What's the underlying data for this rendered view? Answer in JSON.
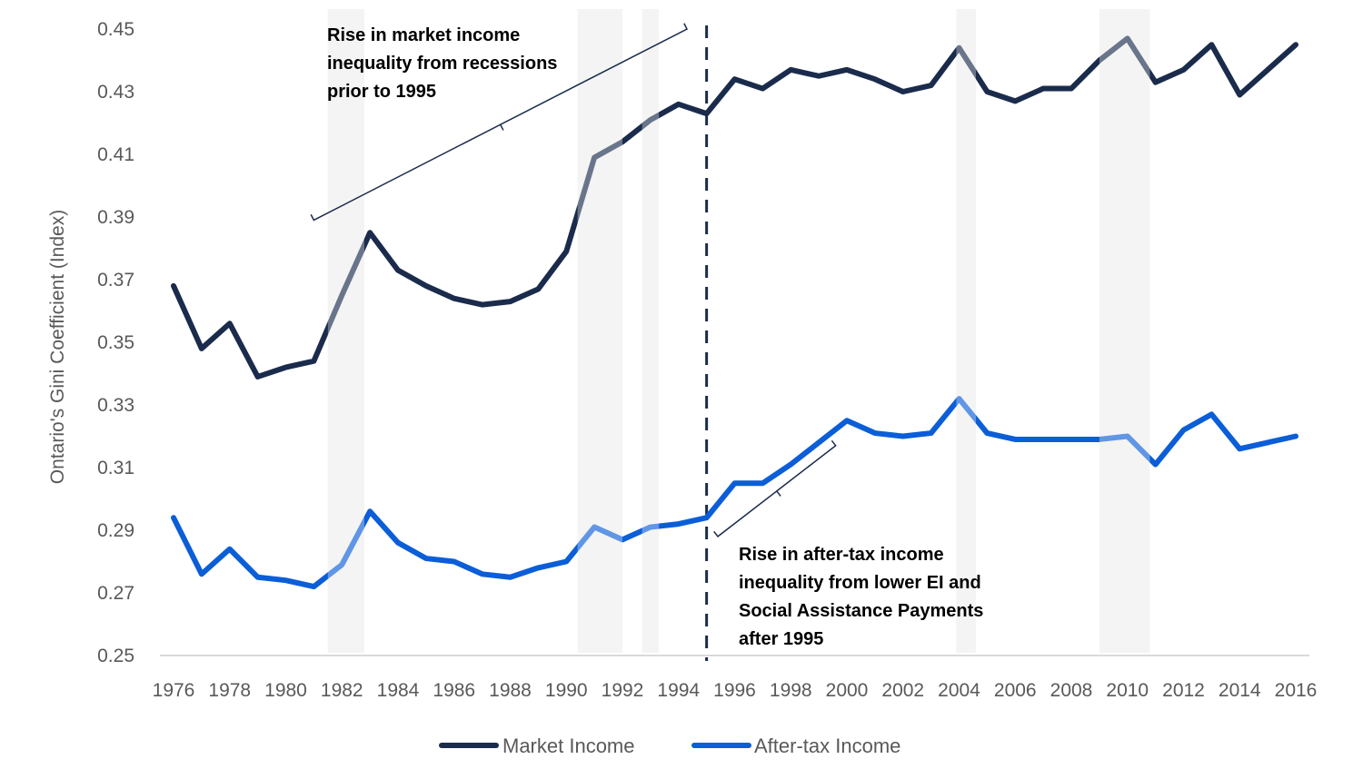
{
  "chart_data": {
    "type": "line",
    "title": "",
    "xlabel": "",
    "ylabel": "Ontario's Gini Coefficient (Index)",
    "ylim": [
      0.25,
      0.45
    ],
    "yticks": [
      "0.25",
      "0.27",
      "0.29",
      "0.31",
      "0.33",
      "0.35",
      "0.37",
      "0.39",
      "0.41",
      "0.43",
      "0.45"
    ],
    "ytick_values": [
      0.25,
      0.27,
      0.29,
      0.31,
      0.33,
      0.35,
      0.37,
      0.39,
      0.41,
      0.43,
      0.45
    ],
    "xlim": [
      1976,
      2016
    ],
    "xticks": [
      "1976",
      "1978",
      "1980",
      "1982",
      "1984",
      "1986",
      "1988",
      "1990",
      "1992",
      "1994",
      "1996",
      "1998",
      "2000",
      "2002",
      "2004",
      "2006",
      "2008",
      "2010",
      "2012",
      "2014",
      "2016"
    ],
    "xtick_values": [
      1976,
      1978,
      1980,
      1982,
      1984,
      1986,
      1988,
      1990,
      1992,
      1994,
      1996,
      1998,
      2000,
      2002,
      2004,
      2006,
      2008,
      2010,
      2012,
      2014,
      2016
    ],
    "grid": false,
    "legend_position": "bottom-center",
    "x": [
      1976,
      1977,
      1978,
      1979,
      1980,
      1981,
      1982,
      1983,
      1984,
      1985,
      1986,
      1987,
      1988,
      1989,
      1990,
      1991,
      1992,
      1993,
      1994,
      1995,
      1996,
      1997,
      1998,
      1999,
      2000,
      2001,
      2002,
      2003,
      2004,
      2005,
      2006,
      2007,
      2008,
      2009,
      2010,
      2011,
      2012,
      2013,
      2014,
      2015,
      2016
    ],
    "series": [
      {
        "name": "Market Income",
        "color": "#1a2b4c",
        "values": [
          0.368,
          0.348,
          0.356,
          0.339,
          0.342,
          0.344,
          0.365,
          0.385,
          0.373,
          0.368,
          0.364,
          0.362,
          0.363,
          0.367,
          0.379,
          0.409,
          0.414,
          0.421,
          0.426,
          0.423,
          0.434,
          0.431,
          0.437,
          0.435,
          0.437,
          0.434,
          0.43,
          0.432,
          0.444,
          0.43,
          0.427,
          0.431,
          0.431,
          0.44,
          0.447,
          0.433,
          0.437,
          0.445,
          0.429,
          0.437,
          0.445
        ]
      },
      {
        "name": "After-tax Income",
        "color": "#0b5ed7",
        "values": [
          0.294,
          0.276,
          0.284,
          0.275,
          0.274,
          0.272,
          0.279,
          0.296,
          0.286,
          0.281,
          0.28,
          0.276,
          0.275,
          0.278,
          0.28,
          0.291,
          0.287,
          0.291,
          0.292,
          0.294,
          0.305,
          0.305,
          0.311,
          0.318,
          0.325,
          0.321,
          0.32,
          0.321,
          0.332,
          0.321,
          0.319,
          0.319,
          0.319,
          0.319,
          0.32,
          0.311,
          0.322,
          0.327,
          0.316,
          0.318,
          0.32
        ]
      }
    ],
    "recession_shading": [
      {
        "start": 1981.5,
        "end": 1982.8
      },
      {
        "start": 1990.4,
        "end": 1992.0
      },
      {
        "start": 1992.7,
        "end": 1993.3
      },
      {
        "start": 2003.9,
        "end": 2004.6
      },
      {
        "start": 2009.0,
        "end": 2010.8
      }
    ],
    "shading_color": "#efefef",
    "reference_line": {
      "x": 1995,
      "style": "dashed",
      "color": "#1a2b4c"
    },
    "annotations": [
      {
        "id": "market",
        "lines": [
          "Rise in market income",
          "inequality from recessions",
          "prior to 1995"
        ],
        "bracket_from_year": 1981,
        "bracket_from_value": 0.389,
        "bracket_to_year": 1994.3,
        "bracket_to_value": 0.45
      },
      {
        "id": "aftertax",
        "lines": [
          "Rise in after-tax income",
          "inequality from lower EI and",
          "Social Assistance Payments",
          "after 1995"
        ],
        "bracket_from_year": 1995.4,
        "bracket_from_value": 0.288,
        "bracket_to_year": 1999.6,
        "bracket_to_value": 0.317
      }
    ]
  }
}
